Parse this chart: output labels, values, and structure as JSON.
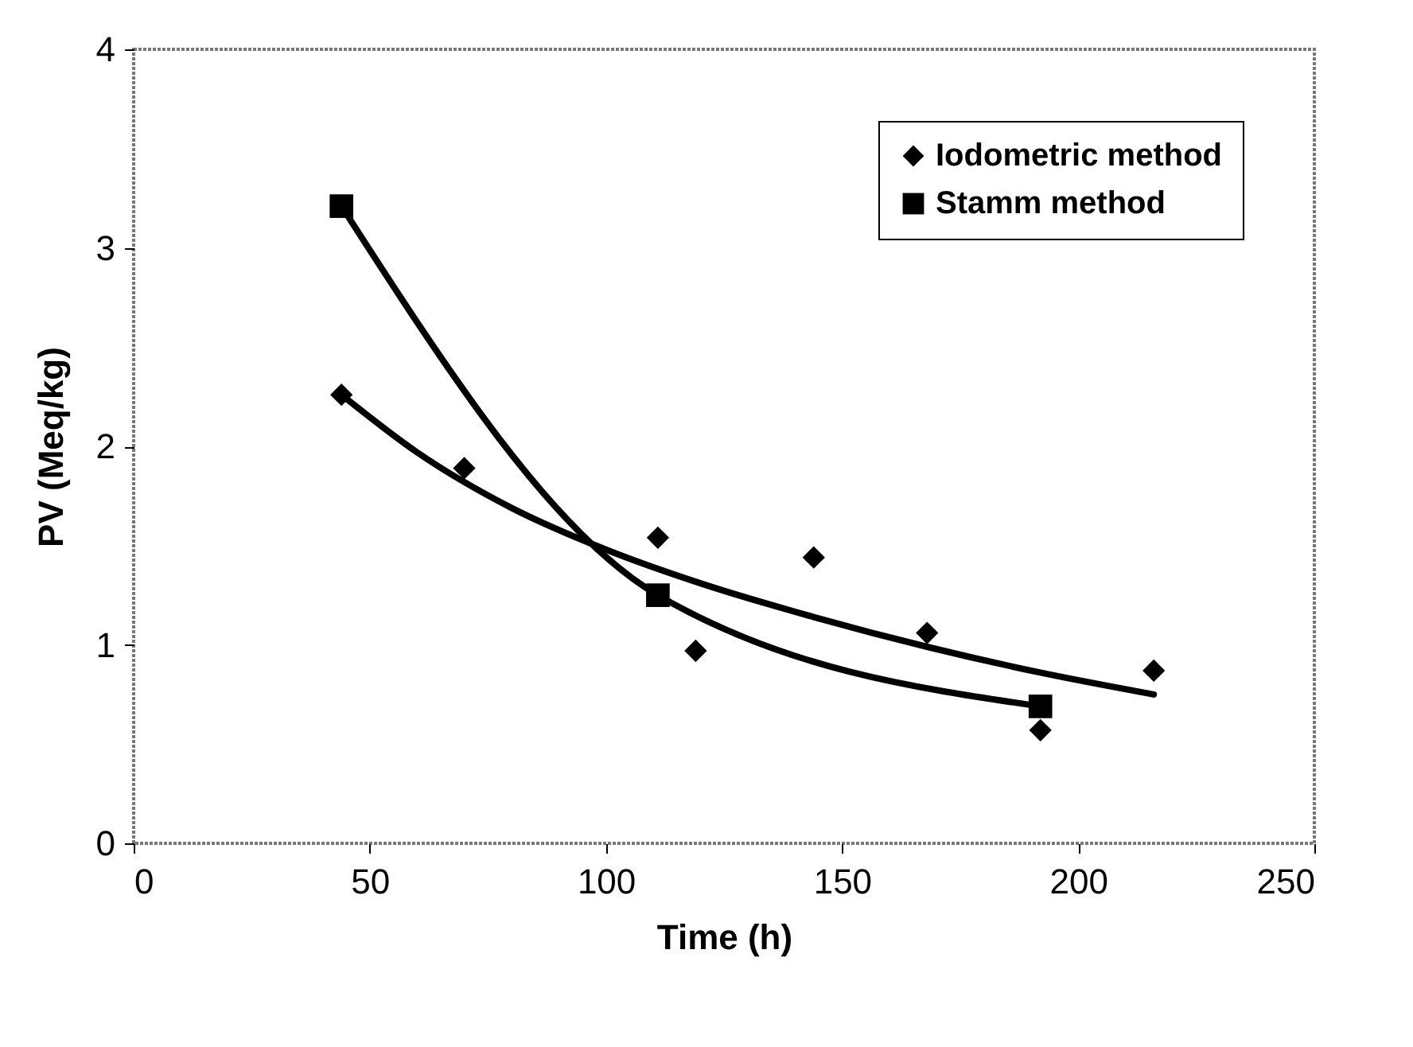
{
  "chart_data": {
    "type": "scatter",
    "xlabel": "Time (h)",
    "ylabel": "PV (Meq/kg)",
    "xlim": [
      0,
      250
    ],
    "xticks": [
      0,
      50,
      100,
      150,
      200,
      250
    ],
    "ylim": [
      0,
      4
    ],
    "yticks": [
      0,
      1,
      2,
      3,
      4
    ],
    "legend": "top right",
    "line_style": "solid",
    "series": [
      {
        "name": "Iodometric method",
        "marker": "diamond",
        "color": "#000000",
        "x": [
          44,
          70,
          111,
          119,
          144,
          168,
          192,
          216
        ],
        "values": [
          2.26,
          1.89,
          1.54,
          0.97,
          1.44,
          1.06,
          0.57,
          0.87
        ]
      },
      {
        "type": "line",
        "marker": "none",
        "color": "#000000",
        "x": [
          44,
          60,
          80,
          100,
          120,
          144,
          168,
          192,
          216
        ],
        "values": [
          2.26,
          1.97,
          1.69,
          1.48,
          1.31,
          1.14,
          0.99,
          0.86,
          0.75
        ]
      },
      {
        "name": "Stamm method",
        "type": "line",
        "marker": "square",
        "color": "#000000",
        "x": [
          44,
          111,
          192
        ],
        "values": [
          3.21,
          1.25,
          0.69
        ]
      }
    ]
  }
}
